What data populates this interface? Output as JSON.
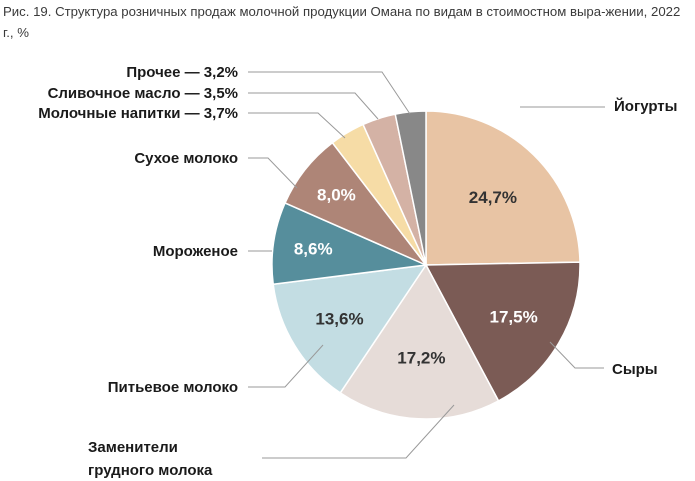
{
  "caption": "Рис. 19. Структура розничных продаж молочной продукции Омана по видам в стоимостном выра-жении, 2022 г., %",
  "chart_data": {
    "type": "pie",
    "title": "Рис. 19. Структура розничных продаж молочной продукции Омана по видам в стоимостном выра-жении, 2022 г., %",
    "unit": "%",
    "slices": [
      {
        "name": "Йогурты",
        "value": 24.7,
        "label": "24,7%",
        "color": "#e8c4a4"
      },
      {
        "name": "Сыры",
        "value": 17.5,
        "label": "17,5%",
        "color": "#7b5b55"
      },
      {
        "name_lines": [
          "Заменители",
          "грудного молока"
        ],
        "value": 17.2,
        "label": "17,2%",
        "color": "#e6dcd8"
      },
      {
        "name": "Питьевое молоко",
        "value": 13.6,
        "label": "13,6%",
        "color": "#c3dde3"
      },
      {
        "name": "Мороженое",
        "value": 8.6,
        "label": "8,6%",
        "color": "#568e9c"
      },
      {
        "name": "Сухое молоко",
        "value": 8.0,
        "label": "8,0%",
        "color": "#ae8577"
      },
      {
        "name": "Молочные напитки — 3,7%",
        "value": 3.7,
        "label": "",
        "color": "#f6dca6"
      },
      {
        "name": "Сливочное масло — 3,5%",
        "value": 3.5,
        "label": "",
        "color": "#d4b2a5"
      },
      {
        "name": "Прочее — 3,2%",
        "value": 3.2,
        "label": "",
        "color": "#888888"
      }
    ]
  }
}
